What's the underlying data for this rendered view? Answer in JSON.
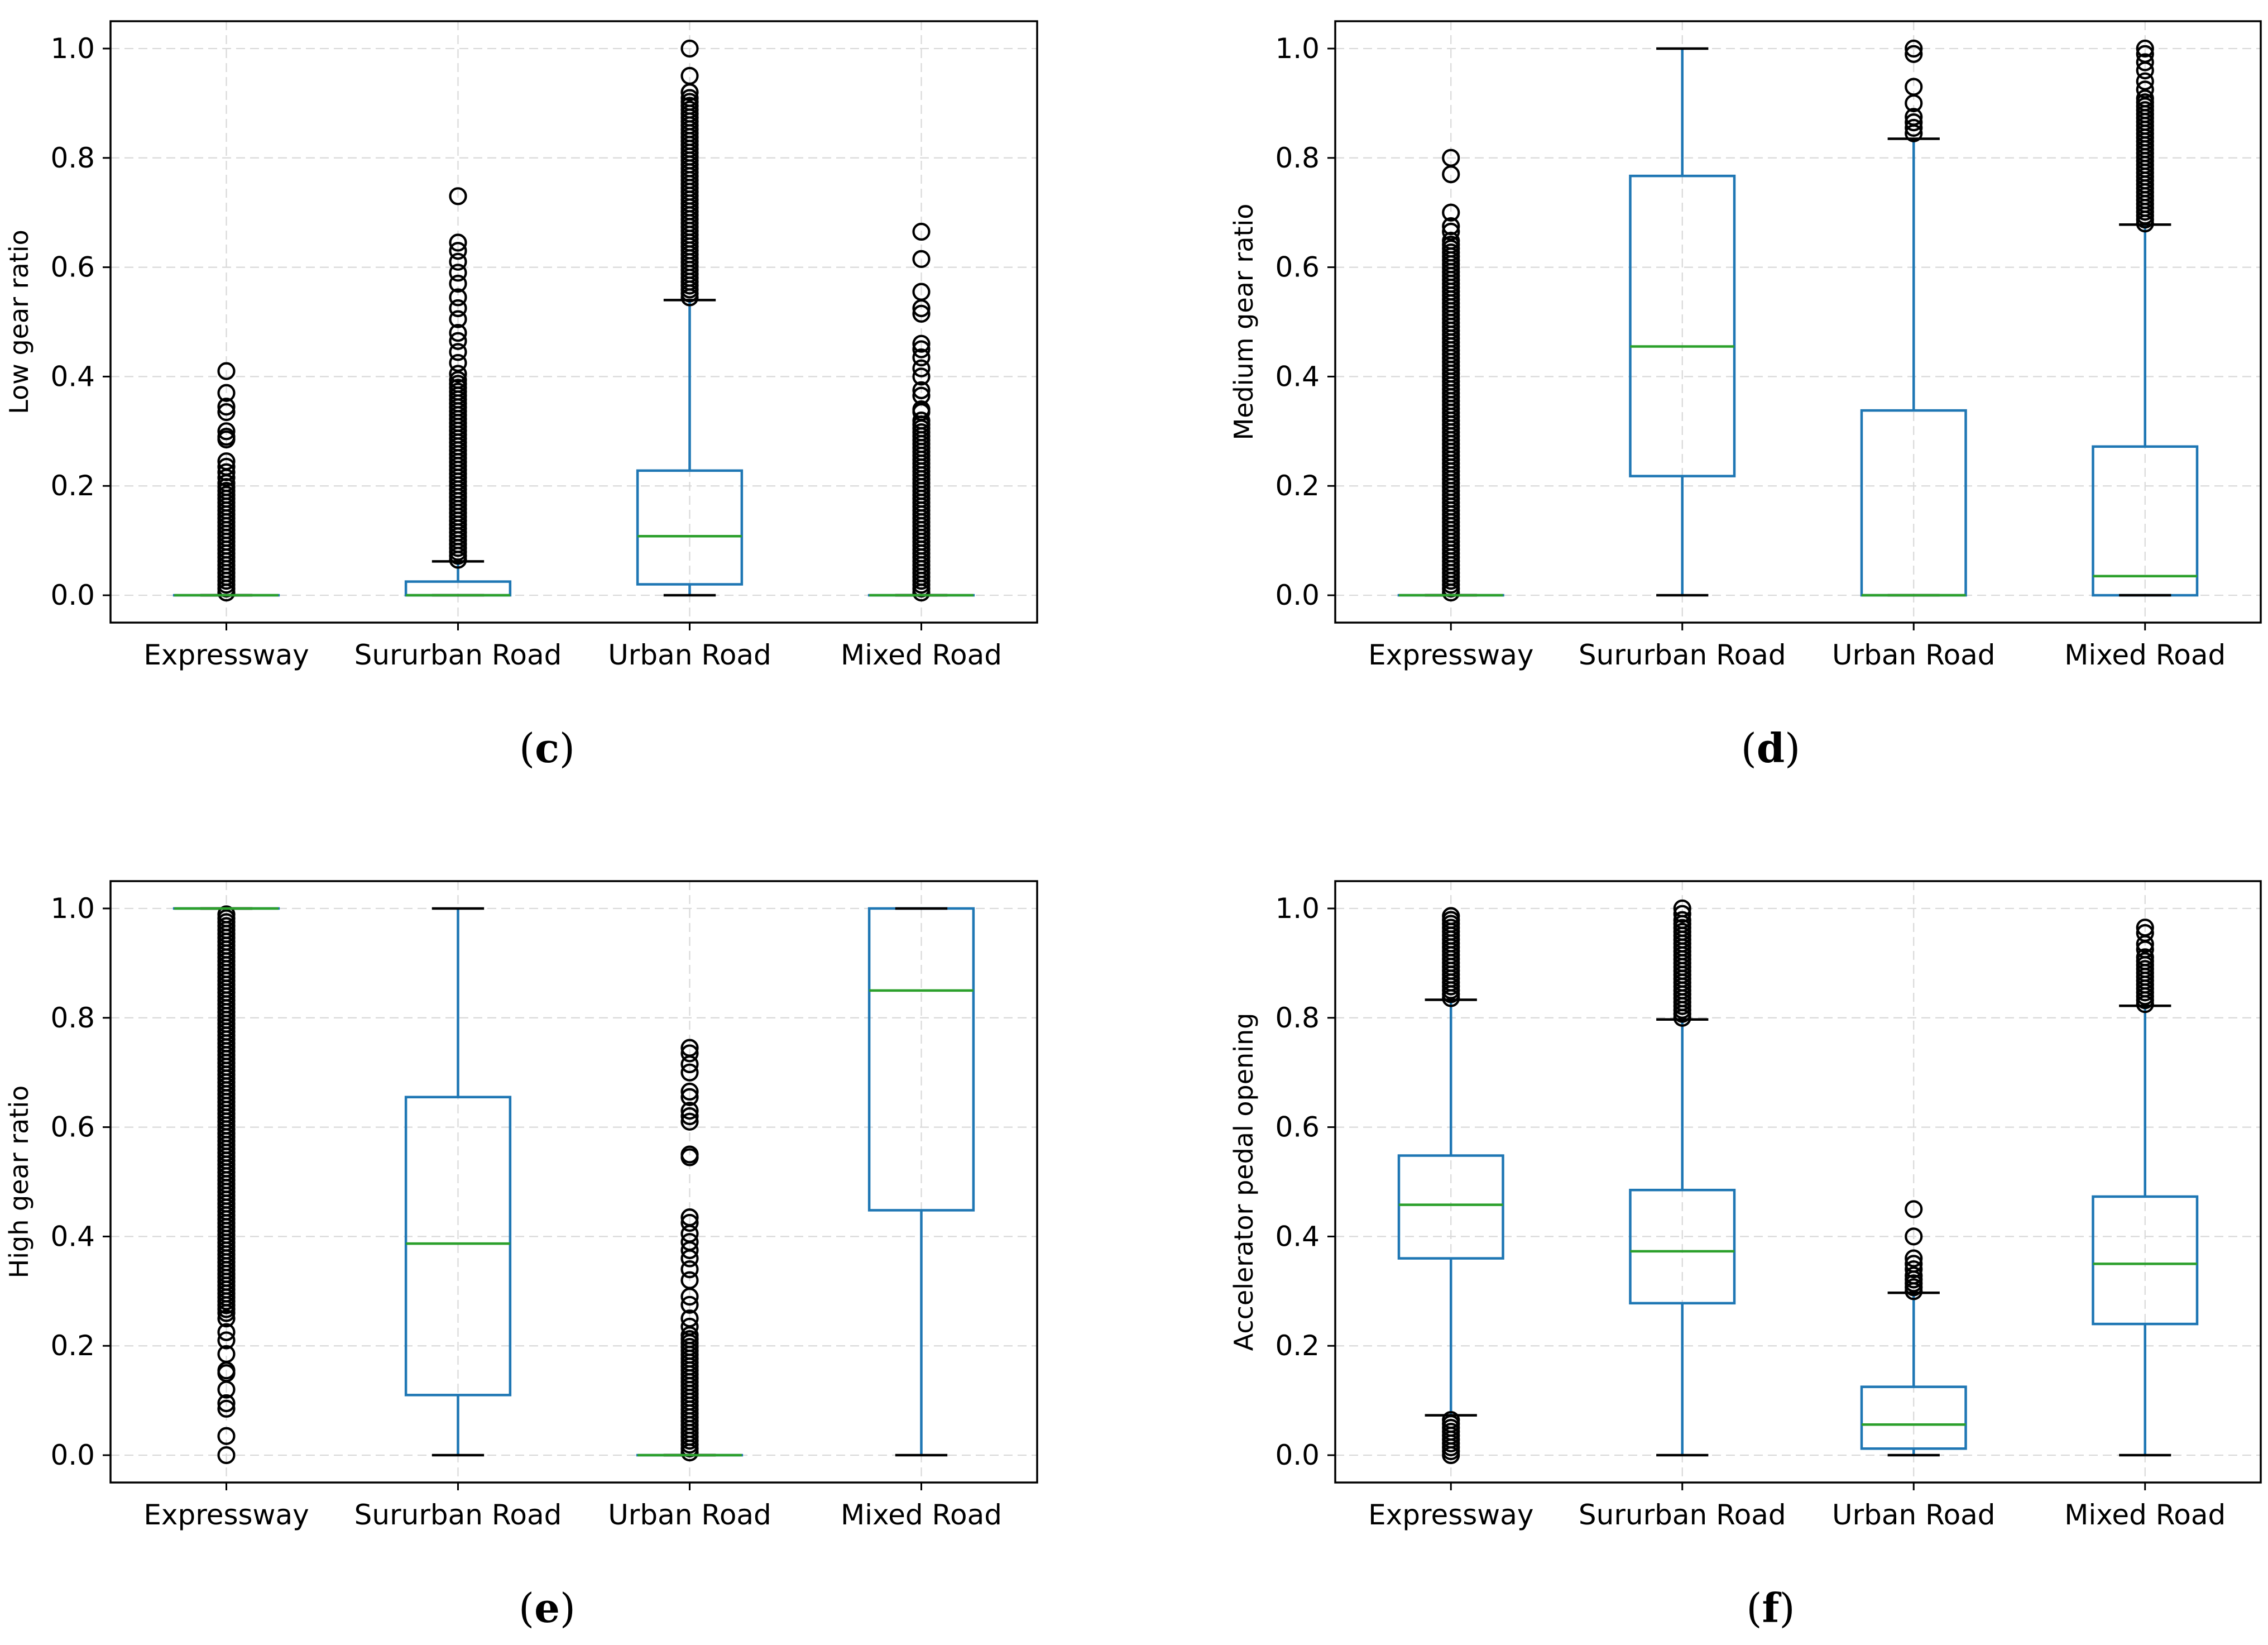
{
  "colors": {
    "box": "#1f77b4",
    "median": "#2ca02c",
    "caps": "#000000",
    "flier": "#000000",
    "grid": "#d9d9d9"
  },
  "chart_data": [
    {
      "type": "box",
      "panel_label": "c",
      "ylabel": "Low gear ratio",
      "categories": [
        "Expressway",
        "Sururban Road",
        "Urban Road",
        "Mixed Road"
      ],
      "ylim": [
        -0.05,
        1.05
      ],
      "yticks": [
        "0.0",
        "0.2",
        "0.4",
        "0.6",
        "0.8",
        "1.0"
      ],
      "grid": true,
      "boxes": [
        {
          "q1": 0.0,
          "median": 0.0,
          "q3": 0.0,
          "whislo": 0.0,
          "whishi": 0.0,
          "fliers": [
            0.41,
            0.37,
            0.345,
            0.335,
            0.3,
            0.29,
            0.285,
            0.245,
            0.235,
            0.225,
            0.215
          ],
          "flier_ranges": [
            [
              0.005,
              0.21
            ]
          ]
        },
        {
          "q1": 0.0,
          "median": 0.0,
          "q3": 0.025,
          "whislo": 0.0,
          "whishi": 0.062,
          "fliers": [
            0.73,
            0.645,
            0.63,
            0.61,
            0.59,
            0.57,
            0.545,
            0.525,
            0.505,
            0.48,
            0.465,
            0.445,
            0.425,
            0.405
          ],
          "flier_ranges": [
            [
              0.065,
              0.4
            ]
          ]
        },
        {
          "q1": 0.02,
          "median": 0.108,
          "q3": 0.228,
          "whislo": 0.0,
          "whishi": 0.54,
          "fliers": [
            1.0,
            0.95,
            0.92
          ],
          "flier_ranges": [
            [
              0.545,
              0.91
            ]
          ]
        },
        {
          "q1": 0.0,
          "median": 0.0,
          "q3": 0.0,
          "whislo": 0.0,
          "whishi": 0.0,
          "fliers": [
            0.665,
            0.615,
            0.555,
            0.525,
            0.515,
            0.46,
            0.45,
            0.435,
            0.415,
            0.4,
            0.375,
            0.365,
            0.34,
            0.335
          ],
          "flier_ranges": [
            [
              0.005,
              0.32
            ]
          ]
        }
      ]
    },
    {
      "type": "box",
      "panel_label": "d",
      "ylabel": "Medium gear ratio",
      "categories": [
        "Expressway",
        "Sururban Road",
        "Urban Road",
        "Mixed Road"
      ],
      "ylim": [
        -0.05,
        1.05
      ],
      "yticks": [
        "0.0",
        "0.2",
        "0.4",
        "0.6",
        "0.8",
        "1.0"
      ],
      "grid": true,
      "boxes": [
        {
          "q1": 0.0,
          "median": 0.0,
          "q3": 0.0,
          "whislo": 0.0,
          "whishi": 0.0,
          "fliers": [
            0.8,
            0.77,
            0.7,
            0.675,
            0.665
          ],
          "flier_ranges": [
            [
              0.005,
              0.655
            ]
          ]
        },
        {
          "q1": 0.218,
          "median": 0.455,
          "q3": 0.767,
          "whislo": 0.0,
          "whishi": 1.0,
          "fliers": [],
          "flier_ranges": []
        },
        {
          "q1": 0.0,
          "median": 0.0,
          "q3": 0.338,
          "whislo": 0.0,
          "whishi": 0.835,
          "fliers": [
            1.0,
            0.99,
            0.93,
            0.9,
            0.875,
            0.865,
            0.855,
            0.845
          ],
          "flier_ranges": []
        },
        {
          "q1": 0.0,
          "median": 0.035,
          "q3": 0.272,
          "whislo": 0.0,
          "whishi": 0.678,
          "fliers": [
            1.0,
            0.99,
            0.975,
            0.96,
            0.94,
            0.925
          ],
          "flier_ranges": [
            [
              0.68,
              0.915
            ]
          ]
        }
      ]
    },
    {
      "type": "box",
      "panel_label": "e",
      "ylabel": "High gear ratio",
      "categories": [
        "Expressway",
        "Sururban Road",
        "Urban Road",
        "Mixed Road"
      ],
      "ylim": [
        -0.05,
        1.05
      ],
      "yticks": [
        "0.0",
        "0.2",
        "0.4",
        "0.6",
        "0.8",
        "1.0"
      ],
      "grid": true,
      "boxes": [
        {
          "q1": 1.0,
          "median": 1.0,
          "q3": 1.0,
          "whislo": 1.0,
          "whishi": 1.0,
          "fliers": [
            0.0,
            0.035,
            0.085,
            0.095,
            0.12,
            0.15,
            0.155,
            0.185,
            0.21,
            0.225,
            0.25
          ],
          "flier_ranges": [
            [
              0.26,
              0.995
            ]
          ]
        },
        {
          "q1": 0.11,
          "median": 0.387,
          "q3": 0.655,
          "whislo": 0.0,
          "whishi": 1.0,
          "fliers": [],
          "flier_ranges": []
        },
        {
          "q1": 0.0,
          "median": 0.0,
          "q3": 0.0,
          "whislo": 0.0,
          "whishi": 0.0,
          "fliers": [
            0.745,
            0.735,
            0.715,
            0.7,
            0.665,
            0.655,
            0.63,
            0.62,
            0.61,
            0.55,
            0.545,
            0.435,
            0.425,
            0.405,
            0.39,
            0.375,
            0.36,
            0.34,
            0.32,
            0.29,
            0.275,
            0.25,
            0.235
          ],
          "flier_ranges": [
            [
              0.005,
              0.225
            ]
          ]
        },
        {
          "q1": 0.448,
          "median": 0.85,
          "q3": 1.0,
          "whislo": 0.0,
          "whishi": 1.0,
          "fliers": [],
          "flier_ranges": []
        }
      ]
    },
    {
      "type": "box",
      "panel_label": "f",
      "ylabel": "Accelerator pedal opening",
      "categories": [
        "Expressway",
        "Sururban Road",
        "Urban Road",
        "Mixed Road"
      ],
      "ylim": [
        -0.05,
        1.05
      ],
      "yticks": [
        "0.0",
        "0.2",
        "0.4",
        "0.6",
        "0.8",
        "1.0"
      ],
      "grid": true,
      "boxes": [
        {
          "q1": 0.36,
          "median": 0.458,
          "q3": 0.548,
          "whislo": 0.073,
          "whishi": 0.833,
          "fliers": [],
          "flier_ranges": [
            [
              0.0,
              0.07
            ],
            [
              0.836,
              0.99
            ]
          ]
        },
        {
          "q1": 0.278,
          "median": 0.373,
          "q3": 0.485,
          "whislo": 0.0,
          "whishi": 0.797,
          "fliers": [
            1.0,
            0.99
          ],
          "flier_ranges": [
            [
              0.8,
              0.98
            ]
          ]
        },
        {
          "q1": 0.012,
          "median": 0.056,
          "q3": 0.125,
          "whislo": 0.0,
          "whishi": 0.297,
          "fliers": [
            0.45,
            0.4,
            0.36,
            0.35,
            0.34
          ],
          "flier_ranges": [
            [
              0.3,
              0.335
            ]
          ]
        },
        {
          "q1": 0.24,
          "median": 0.35,
          "q3": 0.473,
          "whislo": 0.0,
          "whishi": 0.822,
          "fliers": [
            0.965,
            0.955,
            0.935,
            0.925
          ],
          "flier_ranges": [
            [
              0.825,
              0.915
            ]
          ]
        }
      ]
    }
  ]
}
